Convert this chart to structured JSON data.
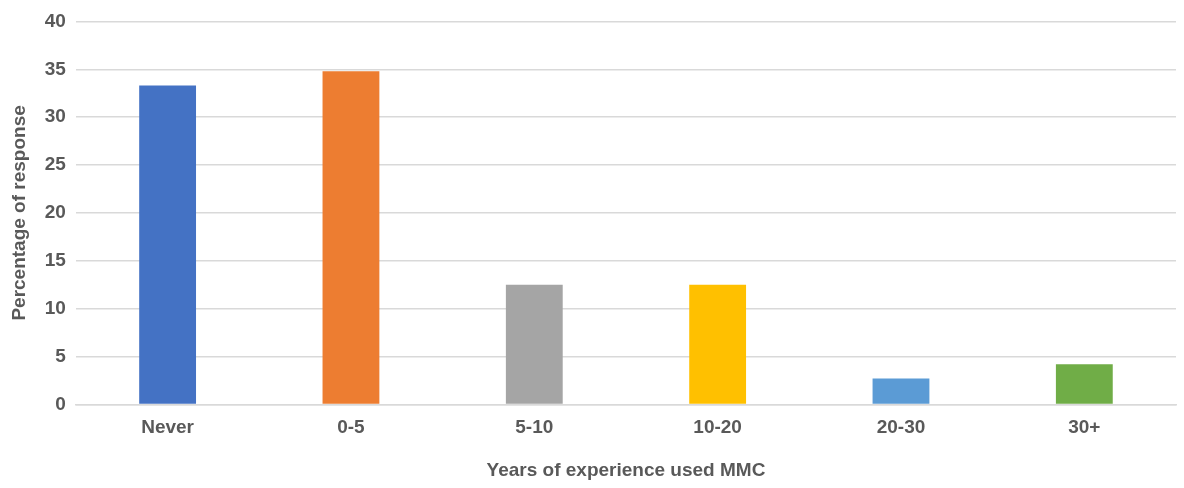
{
  "chart_data": {
    "type": "bar",
    "xlabel": "Years of experience used MMC",
    "ylabel": "Percentage of response",
    "categories": [
      "Never",
      "0-5",
      "5-10",
      "10-20",
      "20-30",
      "30+"
    ],
    "values": [
      33.3,
      34.8,
      12.5,
      12.5,
      2.7,
      4.2
    ],
    "colors": [
      "#4472c4",
      "#ed7d31",
      "#a5a5a5",
      "#ffc000",
      "#5b9bd5",
      "#70ad47"
    ],
    "ylim": [
      0,
      40
    ],
    "yticks": [
      0,
      5,
      10,
      15,
      20,
      25,
      30,
      35,
      40
    ],
    "grid": "y",
    "legend": false
  }
}
